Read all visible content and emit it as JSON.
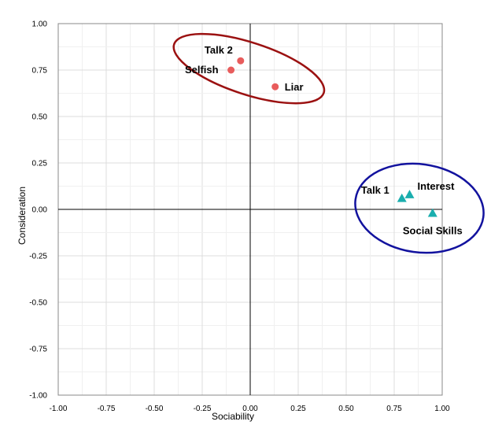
{
  "chart_data": {
    "type": "scatter",
    "title": "",
    "xlabel": "Sociability",
    "ylabel": "Consideration",
    "xlim": [
      -1.0,
      1.0
    ],
    "ylim": [
      -1.0,
      1.0
    ],
    "xticks": [
      "-1.00",
      "-0.75",
      "-0.50",
      "-0.25",
      "0.00",
      "0.25",
      "0.50",
      "0.75",
      "1.00"
    ],
    "yticks": [
      "1.00",
      "0.75",
      "0.50",
      "0.25",
      "0.00",
      "-0.25",
      "-0.50",
      "-0.75",
      "-1.00"
    ],
    "grid": true,
    "series": [
      {
        "marker": "circle",
        "color": "#e85c5c",
        "points": [
          {
            "label": "Talk 2",
            "x": -0.05,
            "y": 0.8
          },
          {
            "label": "Selfish",
            "x": -0.1,
            "y": 0.75
          },
          {
            "label": "Liar",
            "x": 0.13,
            "y": 0.66
          }
        ]
      },
      {
        "marker": "triangle",
        "color": "#1aaeae",
        "points": [
          {
            "label": "Talk 1",
            "x": 0.79,
            "y": 0.06
          },
          {
            "label": "Interest",
            "x": 0.83,
            "y": 0.08
          },
          {
            "label": "Social Skills",
            "x": 0.95,
            "y": -0.02
          }
        ]
      }
    ],
    "groupings": [
      {
        "color": "#9b1111",
        "members": [
          "Talk 2",
          "Selfish",
          "Liar"
        ]
      },
      {
        "color": "#12129e",
        "members": [
          "Talk 1",
          "Interest",
          "Social Skills"
        ]
      }
    ]
  }
}
